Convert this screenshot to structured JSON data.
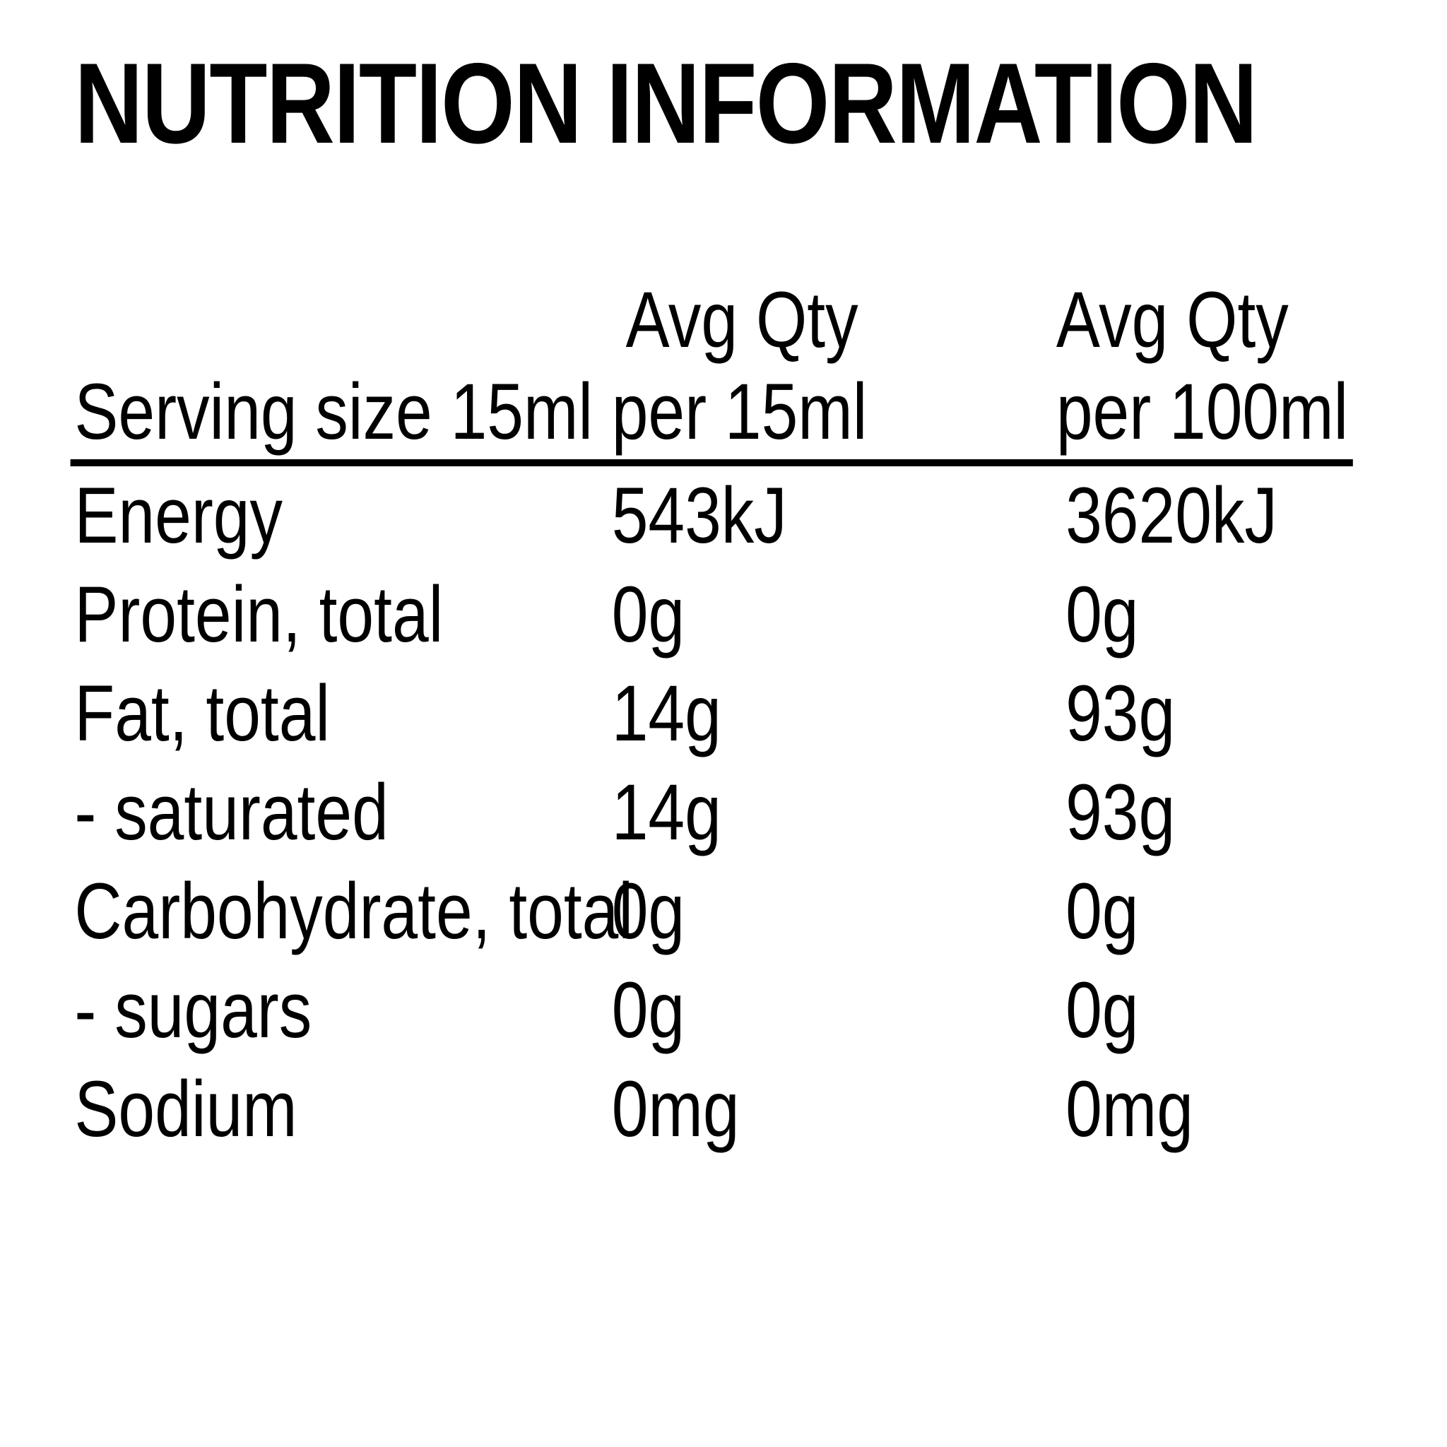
{
  "title": "NUTRITION INFORMATION",
  "colors": {
    "text": "#000000",
    "background": "#ffffff"
  },
  "table": {
    "header": {
      "avg_qty_col2": "Avg Qty",
      "avg_qty_col3": "Avg Qty",
      "serving_size": "Serving size 15ml",
      "per_15ml": "per 15ml",
      "per_100ml": "per 100ml"
    },
    "rows": [
      {
        "label": "Energy",
        "per_15ml": "543kJ",
        "per_100ml": "3620kJ"
      },
      {
        "label": "Protein, total",
        "per_15ml": "0g",
        "per_100ml": "0g"
      },
      {
        "label": "Fat, total",
        "per_15ml": "14g",
        "per_100ml": "93g"
      },
      {
        "label": "- saturated",
        "per_15ml": "14g",
        "per_100ml": "93g"
      },
      {
        "label": "Carbohydrate, total",
        "per_15ml": "0g",
        "per_100ml": "0g"
      },
      {
        "label": "- sugars",
        "per_15ml": "0g",
        "per_100ml": "0g"
      },
      {
        "label": "Sodium",
        "per_15ml": "0mg",
        "per_100ml": "0mg"
      }
    ]
  }
}
